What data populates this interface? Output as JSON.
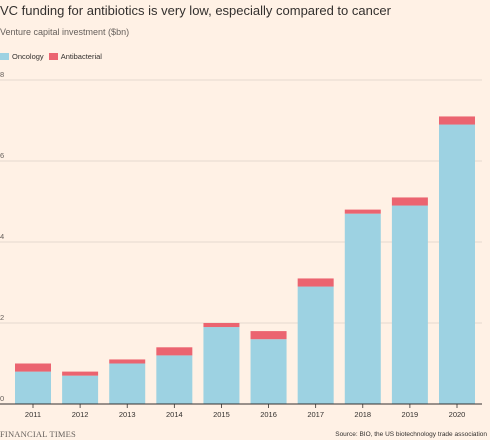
{
  "header": {
    "title": "VC funding for antibiotics is very low, especially compared to cancer",
    "subtitle": "Venture capital investment ($bn)"
  },
  "legend": [
    {
      "label": "Oncology",
      "color": "#9dd2e2"
    },
    {
      "label": "Antibacterial",
      "color": "#eb6470"
    }
  ],
  "footer": {
    "brand": "FINANCIAL TIMES",
    "source": "Source: BIO, the US biotechnology trade association"
  },
  "colors": {
    "background": "#fff1e5",
    "oncology": "#9dd2e2",
    "antibacterial": "#eb6470",
    "gridline": "#e6d9ce",
    "axis": "#33302e"
  },
  "chart_data": {
    "type": "bar",
    "stacked": true,
    "title": "VC funding for antibiotics is very low, especially compared to cancer",
    "subtitle": "Venture capital investment ($bn)",
    "xlabel": "",
    "ylabel": "",
    "categories": [
      "2011",
      "2012",
      "2013",
      "2014",
      "2015",
      "2016",
      "2017",
      "2018",
      "2019",
      "2020"
    ],
    "series": [
      {
        "name": "Oncology",
        "values": [
          0.8,
          0.7,
          1.0,
          1.2,
          1.9,
          1.6,
          2.9,
          4.7,
          4.9,
          6.9
        ]
      },
      {
        "name": "Antibacterial",
        "values": [
          0.2,
          0.1,
          0.1,
          0.2,
          0.1,
          0.2,
          0.2,
          0.1,
          0.2,
          0.2
        ]
      }
    ],
    "ylim": [
      0,
      8
    ],
    "yticks": [
      0,
      2,
      4,
      6,
      8
    ],
    "grid": true,
    "legend_position": "top-left"
  }
}
